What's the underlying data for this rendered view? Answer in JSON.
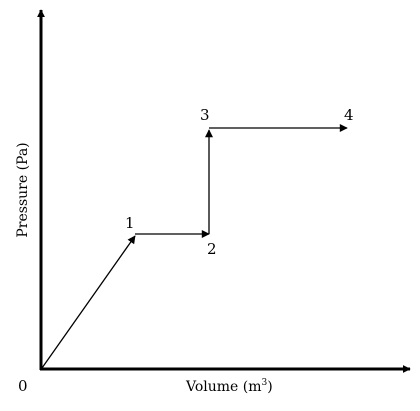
{
  "diagram": {
    "origin_label": "0",
    "x_axis_label": "Volume (m",
    "x_axis_unit_sup": "3",
    "x_axis_label_end": ")",
    "y_axis_label": "Pressure (Pa)",
    "points": [
      {
        "label": "1"
      },
      {
        "label": "2"
      },
      {
        "label": "3"
      },
      {
        "label": "4"
      }
    ],
    "segments": [
      {
        "from": "0",
        "to": "1"
      },
      {
        "from": "1",
        "to": "2"
      },
      {
        "from": "2",
        "to": "3"
      },
      {
        "from": "3",
        "to": "4"
      }
    ],
    "colors": {
      "ink": "#000000",
      "background": "#ffffff"
    }
  }
}
